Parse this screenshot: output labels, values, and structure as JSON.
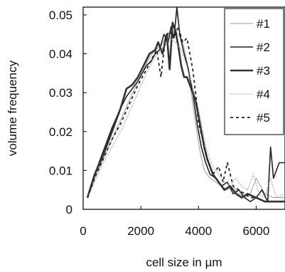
{
  "chart_data": {
    "type": "line",
    "title": "",
    "xlabel": "cell size in µm",
    "ylabel": "volume frequency",
    "xlim": [
      0,
      7000
    ],
    "ylim": [
      0,
      0.052
    ],
    "xticks": [
      0,
      2000,
      4000,
      6000
    ],
    "xtick_labels": [
      "0",
      "2000",
      "4000",
      "6000"
    ],
    "yticks": [
      0,
      0.01,
      0.02,
      0.03,
      0.04,
      0.05
    ],
    "ytick_labels": [
      "0",
      "0.01",
      "0.02",
      "0.03",
      "0.04",
      "0.05"
    ],
    "grid": false,
    "legend_position": "top-right",
    "series": [
      {
        "name": "#1",
        "style": "thin-solid",
        "color": "#9a9a9a",
        "x": [
          150,
          400,
          700,
          1000,
          1300,
          1600,
          1900,
          2100,
          2300,
          2500,
          2700,
          2850,
          3000,
          3150,
          3300,
          3450,
          3600,
          3750,
          3900,
          4050,
          4200,
          4400,
          4600,
          4800,
          5000,
          5200,
          5400,
          5600,
          5800,
          6000,
          6300,
          6600,
          7000
        ],
        "y": [
          0.003,
          0.008,
          0.013,
          0.018,
          0.023,
          0.028,
          0.033,
          0.036,
          0.039,
          0.041,
          0.042,
          0.044,
          0.045,
          0.046,
          0.045,
          0.043,
          0.038,
          0.03,
          0.022,
          0.015,
          0.01,
          0.008,
          0.007,
          0.006,
          0.005,
          0.006,
          0.004,
          0.003,
          0.004,
          0.008,
          0.004,
          0.003,
          0.003
        ]
      },
      {
        "name": "#2",
        "style": "solid",
        "color": "#222222",
        "x": [
          150,
          400,
          700,
          1000,
          1300,
          1500,
          1700,
          1900,
          2050,
          2200,
          2350,
          2500,
          2650,
          2800,
          2950,
          3050,
          3150,
          3250,
          3350,
          3500,
          3650,
          3800,
          3950,
          4100,
          4250,
          4400,
          4600,
          4800,
          5000,
          5200,
          5400,
          5600,
          5800,
          6000,
          6200,
          6400,
          6500,
          6600,
          6800,
          7000
        ],
        "y": [
          0.003,
          0.009,
          0.015,
          0.021,
          0.026,
          0.029,
          0.031,
          0.033,
          0.035,
          0.037,
          0.038,
          0.04,
          0.041,
          0.045,
          0.043,
          0.047,
          0.044,
          0.052,
          0.045,
          0.04,
          0.036,
          0.03,
          0.022,
          0.016,
          0.012,
          0.009,
          0.008,
          0.006,
          0.007,
          0.004,
          0.005,
          0.003,
          0.002,
          0.003,
          0.005,
          0.002,
          0.016,
          0.008,
          0.012,
          0.012
        ]
      },
      {
        "name": "#3",
        "style": "thick-solid",
        "color": "#333333",
        "x": [
          150,
          400,
          700,
          1000,
          1300,
          1500,
          1700,
          1900,
          2100,
          2300,
          2500,
          2600,
          2750,
          2900,
          3000,
          3100,
          3200,
          3300,
          3400,
          3500,
          3600,
          3700,
          3800,
          3900,
          4000,
          4100,
          4200,
          4300,
          4500,
          4700,
          4900,
          5100,
          5300,
          5500,
          5700,
          6000,
          6300,
          6600,
          7000
        ],
        "y": [
          0.003,
          0.009,
          0.014,
          0.02,
          0.026,
          0.031,
          0.032,
          0.034,
          0.037,
          0.04,
          0.041,
          0.043,
          0.04,
          0.045,
          0.036,
          0.048,
          0.046,
          0.042,
          0.037,
          0.034,
          0.034,
          0.032,
          0.03,
          0.028,
          0.024,
          0.02,
          0.016,
          0.013,
          0.009,
          0.007,
          0.005,
          0.006,
          0.004,
          0.003,
          0.004,
          0.003,
          0.002,
          0.002,
          0.002
        ]
      },
      {
        "name": "#4",
        "style": "dotted",
        "color": "#9a9a9a",
        "x": [
          150,
          400,
          700,
          1000,
          1300,
          1600,
          1900,
          2200,
          2400,
          2600,
          2800,
          3000,
          3200,
          3400,
          3550,
          3700,
          3850,
          4000,
          4150,
          4300,
          4500,
          4700,
          4900,
          5100,
          5300,
          5500,
          5700,
          5900,
          6100,
          6300,
          6500,
          6700,
          7000
        ],
        "y": [
          0.003,
          0.007,
          0.012,
          0.016,
          0.02,
          0.025,
          0.03,
          0.035,
          0.038,
          0.04,
          0.042,
          0.044,
          0.043,
          0.041,
          0.038,
          0.034,
          0.03,
          0.026,
          0.02,
          0.015,
          0.011,
          0.009,
          0.007,
          0.006,
          0.008,
          0.006,
          0.005,
          0.009,
          0.004,
          0.003,
          0.008,
          0.003,
          0.004
        ]
      },
      {
        "name": "#5",
        "style": "dashed",
        "color": "#222222",
        "x": [
          150,
          400,
          700,
          1000,
          1300,
          1600,
          1900,
          2200,
          2400,
          2550,
          2700,
          2850,
          3000,
          3150,
          3300,
          3450,
          3600,
          3700,
          3800,
          3900,
          4000,
          4150,
          4300,
          4500,
          4700,
          4850,
          5000,
          5200,
          5400,
          5600,
          5800,
          6000
        ],
        "y": [
          0.003,
          0.008,
          0.013,
          0.018,
          0.022,
          0.027,
          0.032,
          0.036,
          0.039,
          0.041,
          0.034,
          0.044,
          0.046,
          0.044,
          0.047,
          0.043,
          0.044,
          0.04,
          0.036,
          0.03,
          0.022,
          0.018,
          0.013,
          0.009,
          0.011,
          0.007,
          0.012,
          0.006,
          0.005,
          0.004,
          0.003,
          0.003
        ]
      }
    ]
  }
}
